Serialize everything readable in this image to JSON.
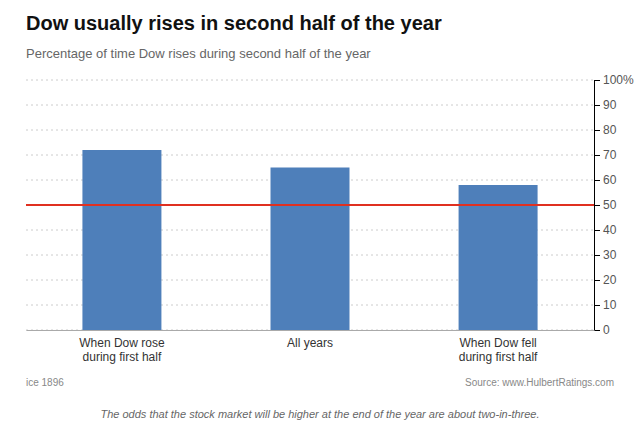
{
  "chart_data": {
    "type": "bar",
    "title": "Dow usually rises in second half of the year",
    "subtitle": "Percentage of time Dow rises during second half of the year",
    "categories": [
      "When Dow rose\nduring first half",
      "All years",
      "When Dow fell\nduring first half"
    ],
    "values": [
      72,
      65,
      58
    ],
    "color": "#4e7fba",
    "reference_line": {
      "value": 50,
      "color": "#e03020"
    },
    "ylim": [
      0,
      100
    ],
    "yticks": [
      0,
      10,
      20,
      30,
      40,
      50,
      60,
      70,
      80,
      90,
      {
        "value": 100,
        "label": "100%"
      }
    ],
    "grid": true,
    "annotations": [
      "ice 1896",
      "Source: www.HulbertRatings.com",
      "The odds that the stock market will be higher at the end of the year are about two-in-three."
    ]
  }
}
